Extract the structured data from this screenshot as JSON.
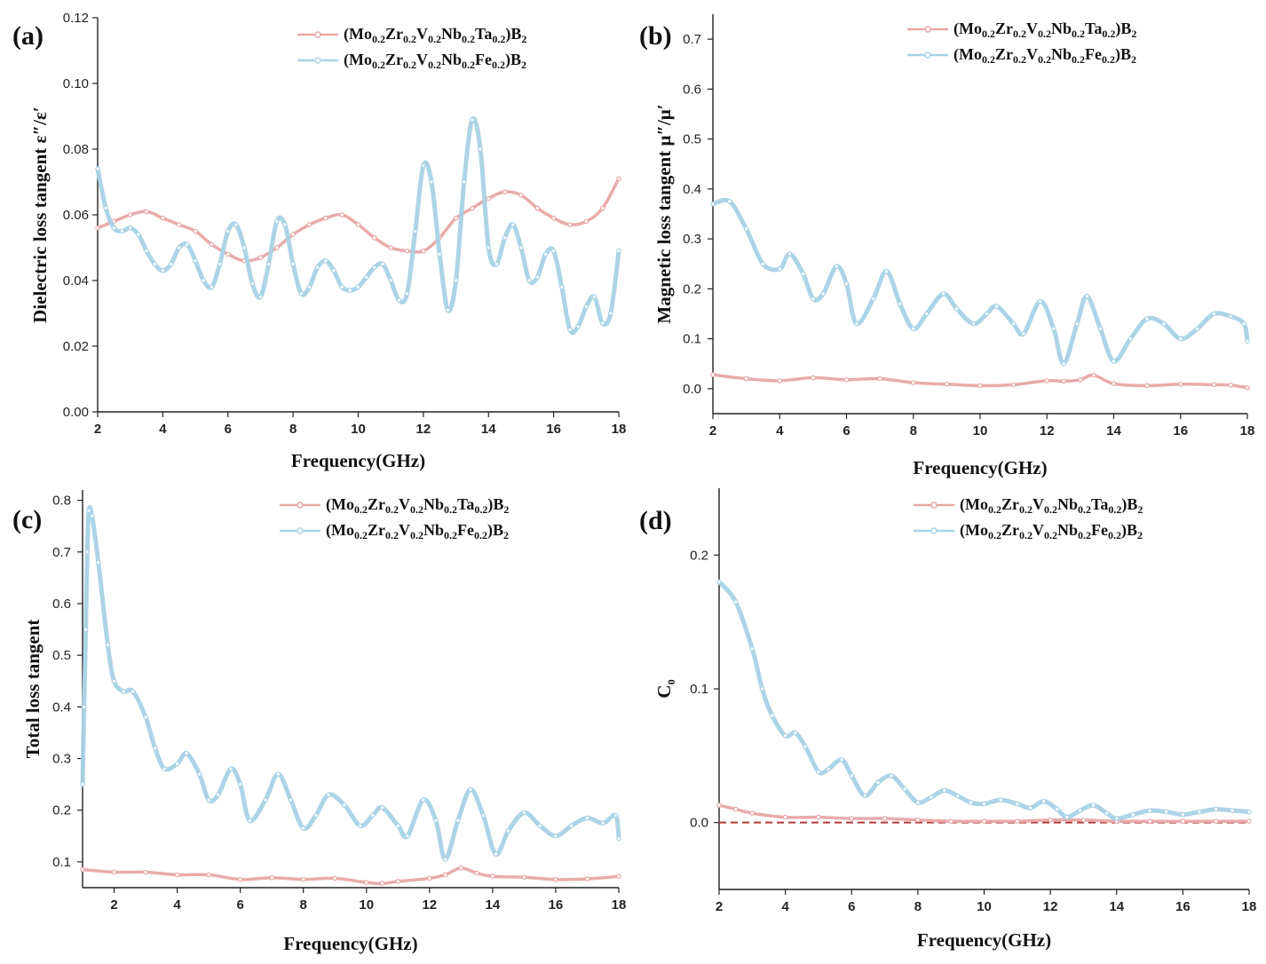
{
  "colors": {
    "ta_series": "#e8a7a7",
    "fe_series": "#a8d2e6",
    "ref_line": "#b03a3a",
    "axis": "#222222"
  },
  "legend_names": [
    {
      "prefix": "(Mo",
      "parts": [
        [
          "sub",
          "0.2"
        ],
        [
          "t",
          "Zr"
        ],
        [
          "sub",
          "0.2"
        ],
        [
          "t",
          "V"
        ],
        [
          "sub",
          "0.2"
        ],
        [
          "t",
          "Nb"
        ],
        [
          "sub",
          "0.2"
        ],
        [
          "t",
          "Ta"
        ],
        [
          "sub",
          "0.2"
        ],
        [
          "t",
          ")B"
        ],
        [
          "sub",
          "2"
        ]
      ]
    },
    {
      "prefix": "(Mo",
      "parts": [
        [
          "sub",
          "0.2"
        ],
        [
          "t",
          "Zr"
        ],
        [
          "sub",
          "0.2"
        ],
        [
          "t",
          "V"
        ],
        [
          "sub",
          "0.2"
        ],
        [
          "t",
          "Nb"
        ],
        [
          "sub",
          "0.2"
        ],
        [
          "t",
          "Fe"
        ],
        [
          "sub",
          "0.2"
        ],
        [
          "t",
          ")B"
        ],
        [
          "sub",
          "2"
        ]
      ]
    }
  ],
  "chart_data": [
    {
      "panel": "(a)",
      "type": "line",
      "xlabel": "Frequency(GHz)",
      "ylabel": "Dielectric loss tangent  ε″/ε′",
      "xlim": [
        2,
        18
      ],
      "ylim": [
        0,
        0.12
      ],
      "xticks": [
        2,
        4,
        6,
        8,
        10,
        12,
        14,
        16,
        18
      ],
      "yticks": [
        0.0,
        0.02,
        0.04,
        0.06,
        0.08,
        0.1,
        0.12
      ],
      "ytick_labels": [
        "0.00",
        "0.02",
        "0.04",
        "0.06",
        "0.08",
        "0.10",
        "0.12"
      ],
      "legend": "top-right",
      "series": [
        {
          "name": "(Mo0.2Zr0.2V0.2Nb0.2Ta0.2)B2",
          "x": [
            2,
            2.5,
            3,
            3.5,
            4,
            4.5,
            5,
            5.5,
            6,
            6.5,
            7,
            7.5,
            8,
            8.5,
            9,
            9.5,
            10,
            10.5,
            11,
            11.5,
            12,
            12.5,
            13,
            13.5,
            14,
            14.5,
            15,
            15.5,
            16,
            16.5,
            17,
            17.5,
            18
          ],
          "y": [
            0.056,
            0.058,
            0.06,
            0.061,
            0.059,
            0.057,
            0.055,
            0.051,
            0.048,
            0.046,
            0.047,
            0.05,
            0.054,
            0.057,
            0.059,
            0.06,
            0.057,
            0.053,
            0.05,
            0.049,
            0.049,
            0.053,
            0.059,
            0.062,
            0.065,
            0.067,
            0.066,
            0.062,
            0.059,
            0.057,
            0.058,
            0.062,
            0.071
          ]
        },
        {
          "name": "(Mo0.2Zr0.2V0.2Nb0.2Fe0.2)B2",
          "x": [
            2,
            2.25,
            2.5,
            2.75,
            3,
            3.25,
            3.5,
            3.75,
            4,
            4.25,
            4.5,
            4.75,
            5,
            5.25,
            5.5,
            5.75,
            6,
            6.25,
            6.5,
            6.75,
            7,
            7.25,
            7.5,
            7.75,
            8,
            8.25,
            8.5,
            8.75,
            9,
            9.25,
            9.5,
            9.75,
            10,
            10.25,
            10.5,
            10.75,
            11,
            11.25,
            11.5,
            11.75,
            12,
            12.25,
            12.5,
            12.75,
            13,
            13.25,
            13.5,
            13.75,
            14,
            14.25,
            14.5,
            14.75,
            15,
            15.25,
            15.5,
            15.75,
            16,
            16.25,
            16.5,
            16.75,
            17,
            17.25,
            17.5,
            17.75,
            18
          ],
          "y": [
            0.074,
            0.062,
            0.056,
            0.055,
            0.056,
            0.054,
            0.049,
            0.045,
            0.043,
            0.045,
            0.05,
            0.051,
            0.046,
            0.04,
            0.038,
            0.045,
            0.055,
            0.057,
            0.05,
            0.039,
            0.035,
            0.045,
            0.058,
            0.057,
            0.045,
            0.036,
            0.038,
            0.044,
            0.046,
            0.043,
            0.038,
            0.037,
            0.038,
            0.041,
            0.044,
            0.045,
            0.04,
            0.034,
            0.036,
            0.055,
            0.075,
            0.07,
            0.048,
            0.031,
            0.04,
            0.07,
            0.089,
            0.08,
            0.05,
            0.045,
            0.053,
            0.057,
            0.05,
            0.04,
            0.041,
            0.048,
            0.049,
            0.038,
            0.025,
            0.026,
            0.032,
            0.035,
            0.027,
            0.03,
            0.049
          ]
        }
      ]
    },
    {
      "panel": "(b)",
      "type": "line",
      "xlabel": "Frequency(GHz)",
      "ylabel": "Magnetic loss tangent  μ″/μ′",
      "xlim": [
        2,
        18
      ],
      "ylim": [
        -0.05,
        0.75
      ],
      "xticks": [
        2,
        4,
        6,
        8,
        10,
        12,
        14,
        16,
        18
      ],
      "yticks": [
        0.0,
        0.1,
        0.2,
        0.3,
        0.4,
        0.5,
        0.6,
        0.7
      ],
      "ytick_labels": [
        "0.0",
        "0.1",
        "0.2",
        "0.3",
        "0.4",
        "0.5",
        "0.6",
        "0.7"
      ],
      "legend": "top-right",
      "series": [
        {
          "name": "(Mo0.2Zr0.2V0.2Nb0.2Ta0.2)B2",
          "x": [
            2,
            3,
            4,
            5,
            6,
            7,
            8,
            9,
            10,
            11,
            12,
            12.5,
            13,
            13.4,
            14,
            15,
            16,
            17,
            17.5,
            18
          ],
          "y": [
            0.028,
            0.02,
            0.016,
            0.022,
            0.018,
            0.02,
            0.012,
            0.009,
            0.006,
            0.008,
            0.016,
            0.015,
            0.018,
            0.027,
            0.01,
            0.006,
            0.009,
            0.008,
            0.007,
            0.002
          ]
        },
        {
          "name": "(Mo0.2Zr0.2V0.2Nb0.2Fe0.2)B2",
          "x": [
            2,
            2.5,
            3,
            3.5,
            4,
            4.3,
            4.7,
            5,
            5.3,
            5.7,
            6,
            6.3,
            6.8,
            7.2,
            7.6,
            8,
            8.4,
            8.9,
            9.3,
            9.8,
            10.2,
            10.5,
            11,
            11.3,
            11.8,
            12.2,
            12.5,
            12.9,
            13.2,
            13.6,
            14,
            14.5,
            15,
            15.5,
            16,
            16.5,
            17,
            17.5,
            17.9,
            18
          ],
          "y": [
            0.37,
            0.375,
            0.32,
            0.25,
            0.24,
            0.27,
            0.23,
            0.18,
            0.19,
            0.245,
            0.21,
            0.13,
            0.18,
            0.235,
            0.17,
            0.12,
            0.15,
            0.19,
            0.16,
            0.13,
            0.15,
            0.165,
            0.13,
            0.11,
            0.175,
            0.12,
            0.05,
            0.13,
            0.185,
            0.12,
            0.055,
            0.1,
            0.14,
            0.13,
            0.1,
            0.12,
            0.15,
            0.145,
            0.13,
            0.095
          ]
        }
      ]
    },
    {
      "panel": "(c)",
      "type": "line",
      "xlabel": "Frequency(GHz)",
      "ylabel": "Total loss tangent",
      "xlim": [
        1,
        18
      ],
      "ylim": [
        0.05,
        0.82
      ],
      "xticks": [
        2,
        4,
        6,
        8,
        10,
        12,
        14,
        16,
        18
      ],
      "yticks": [
        0.1,
        0.2,
        0.3,
        0.4,
        0.5,
        0.6,
        0.7,
        0.8
      ],
      "ytick_labels": [
        "0.1",
        "0.2",
        "0.3",
        "0.4",
        "0.5",
        "0.6",
        "0.7",
        "0.8"
      ],
      "legend": "top-right",
      "series": [
        {
          "name": "(Mo0.2Zr0.2V0.2Nb0.2Ta0.2)B2",
          "x": [
            1,
            2,
            3,
            4,
            5,
            6,
            7,
            8,
            9,
            10,
            10.5,
            11,
            12,
            12.5,
            13,
            13.5,
            14,
            15,
            16,
            17,
            18
          ],
          "y": [
            0.085,
            0.08,
            0.08,
            0.075,
            0.075,
            0.066,
            0.069,
            0.066,
            0.068,
            0.06,
            0.058,
            0.062,
            0.068,
            0.075,
            0.088,
            0.078,
            0.072,
            0.07,
            0.066,
            0.067,
            0.072
          ]
        },
        {
          "name": "(Mo0.2Zr0.2V0.2Nb0.2Fe0.2)B2",
          "x": [
            1,
            1.05,
            1.1,
            1.15,
            1.2,
            1.3,
            1.5,
            1.8,
            2,
            2.3,
            2.6,
            3,
            3.3,
            3.6,
            4,
            4.3,
            4.7,
            5,
            5.3,
            5.7,
            6,
            6.3,
            6.8,
            7.2,
            7.6,
            8,
            8.4,
            8.8,
            9.3,
            9.8,
            10.2,
            10.5,
            11,
            11.3,
            11.8,
            12.2,
            12.5,
            12.9,
            13.3,
            13.7,
            14.1,
            14.5,
            15,
            15.5,
            16,
            16.5,
            17,
            17.5,
            17.9,
            18
          ],
          "y": [
            0.25,
            0.4,
            0.55,
            0.7,
            0.78,
            0.77,
            0.68,
            0.52,
            0.45,
            0.43,
            0.43,
            0.38,
            0.32,
            0.28,
            0.29,
            0.31,
            0.27,
            0.22,
            0.23,
            0.28,
            0.25,
            0.18,
            0.22,
            0.27,
            0.22,
            0.165,
            0.19,
            0.23,
            0.21,
            0.17,
            0.19,
            0.205,
            0.17,
            0.15,
            0.22,
            0.18,
            0.105,
            0.18,
            0.24,
            0.19,
            0.115,
            0.16,
            0.195,
            0.17,
            0.15,
            0.17,
            0.185,
            0.175,
            0.19,
            0.145
          ]
        }
      ]
    },
    {
      "panel": "(d)",
      "type": "line",
      "xlabel": "Frequency(GHz)",
      "ylabel": "C",
      "ylabel_sub": "0",
      "xlim": [
        2,
        18
      ],
      "ylim": [
        -0.05,
        0.25
      ],
      "xticks": [
        2,
        4,
        6,
        8,
        10,
        12,
        14,
        16,
        18
      ],
      "yticks": [
        0.0,
        0.1,
        0.2
      ],
      "ytick_labels": [
        "0.0",
        "0.1",
        "0.2"
      ],
      "legend": "top-right",
      "reference_line_y": 0,
      "series": [
        {
          "name": "(Mo0.2Zr0.2V0.2Nb0.2Ta0.2)B2",
          "x": [
            2,
            2.5,
            3,
            4,
            5,
            6,
            7,
            8,
            9,
            10,
            11,
            12,
            13,
            14,
            15,
            16,
            17,
            18
          ],
          "y": [
            0.013,
            0.01,
            0.007,
            0.004,
            0.004,
            0.003,
            0.003,
            0.002,
            0.001,
            0.001,
            0.001,
            0.002,
            0.002,
            0.001,
            0.001,
            0.001,
            0.001,
            0.001
          ]
        },
        {
          "name": "(Mo0.2Zr0.2V0.2Nb0.2Fe0.2)B2",
          "x": [
            2,
            2.5,
            3,
            3.3,
            3.6,
            4,
            4.3,
            4.6,
            5,
            5.3,
            5.7,
            6,
            6.4,
            6.8,
            7.2,
            7.6,
            8,
            8.4,
            8.8,
            9.2,
            9.6,
            10,
            10.5,
            11,
            11.4,
            11.8,
            12.2,
            12.5,
            12.9,
            13.3,
            13.7,
            14,
            14.5,
            15,
            15.5,
            16,
            16.5,
            17,
            17.5,
            18
          ],
          "y": [
            0.18,
            0.165,
            0.13,
            0.1,
            0.08,
            0.065,
            0.067,
            0.057,
            0.038,
            0.04,
            0.047,
            0.035,
            0.02,
            0.03,
            0.035,
            0.025,
            0.015,
            0.019,
            0.024,
            0.02,
            0.015,
            0.014,
            0.017,
            0.014,
            0.011,
            0.016,
            0.01,
            0.004,
            0.009,
            0.013,
            0.007,
            0.003,
            0.006,
            0.009,
            0.008,
            0.006,
            0.008,
            0.01,
            0.009,
            0.008
          ]
        }
      ]
    }
  ]
}
